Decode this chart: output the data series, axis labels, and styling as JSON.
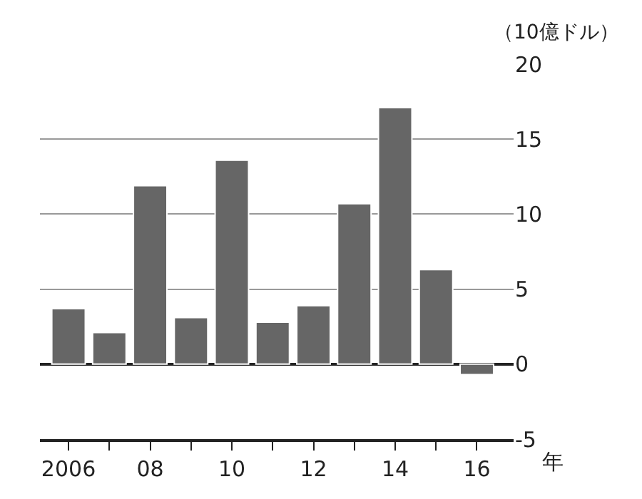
{
  "chart_data": {
    "type": "bar",
    "xlabel": "年",
    "ylabel": "（10億ドル）",
    "categories": [
      "2006",
      null,
      "08",
      null,
      "10",
      null,
      "12",
      null,
      "14",
      null,
      "16"
    ],
    "values": [
      3.7,
      2.1,
      11.9,
      3.1,
      13.6,
      2.8,
      3.9,
      10.7,
      17.1,
      6.3,
      -0.7
    ],
    "color": "#666666",
    "ylim": [
      -5,
      20
    ],
    "yticks": [
      -5,
      0,
      5,
      10,
      15,
      20
    ],
    "grid": "y",
    "legend": false
  }
}
